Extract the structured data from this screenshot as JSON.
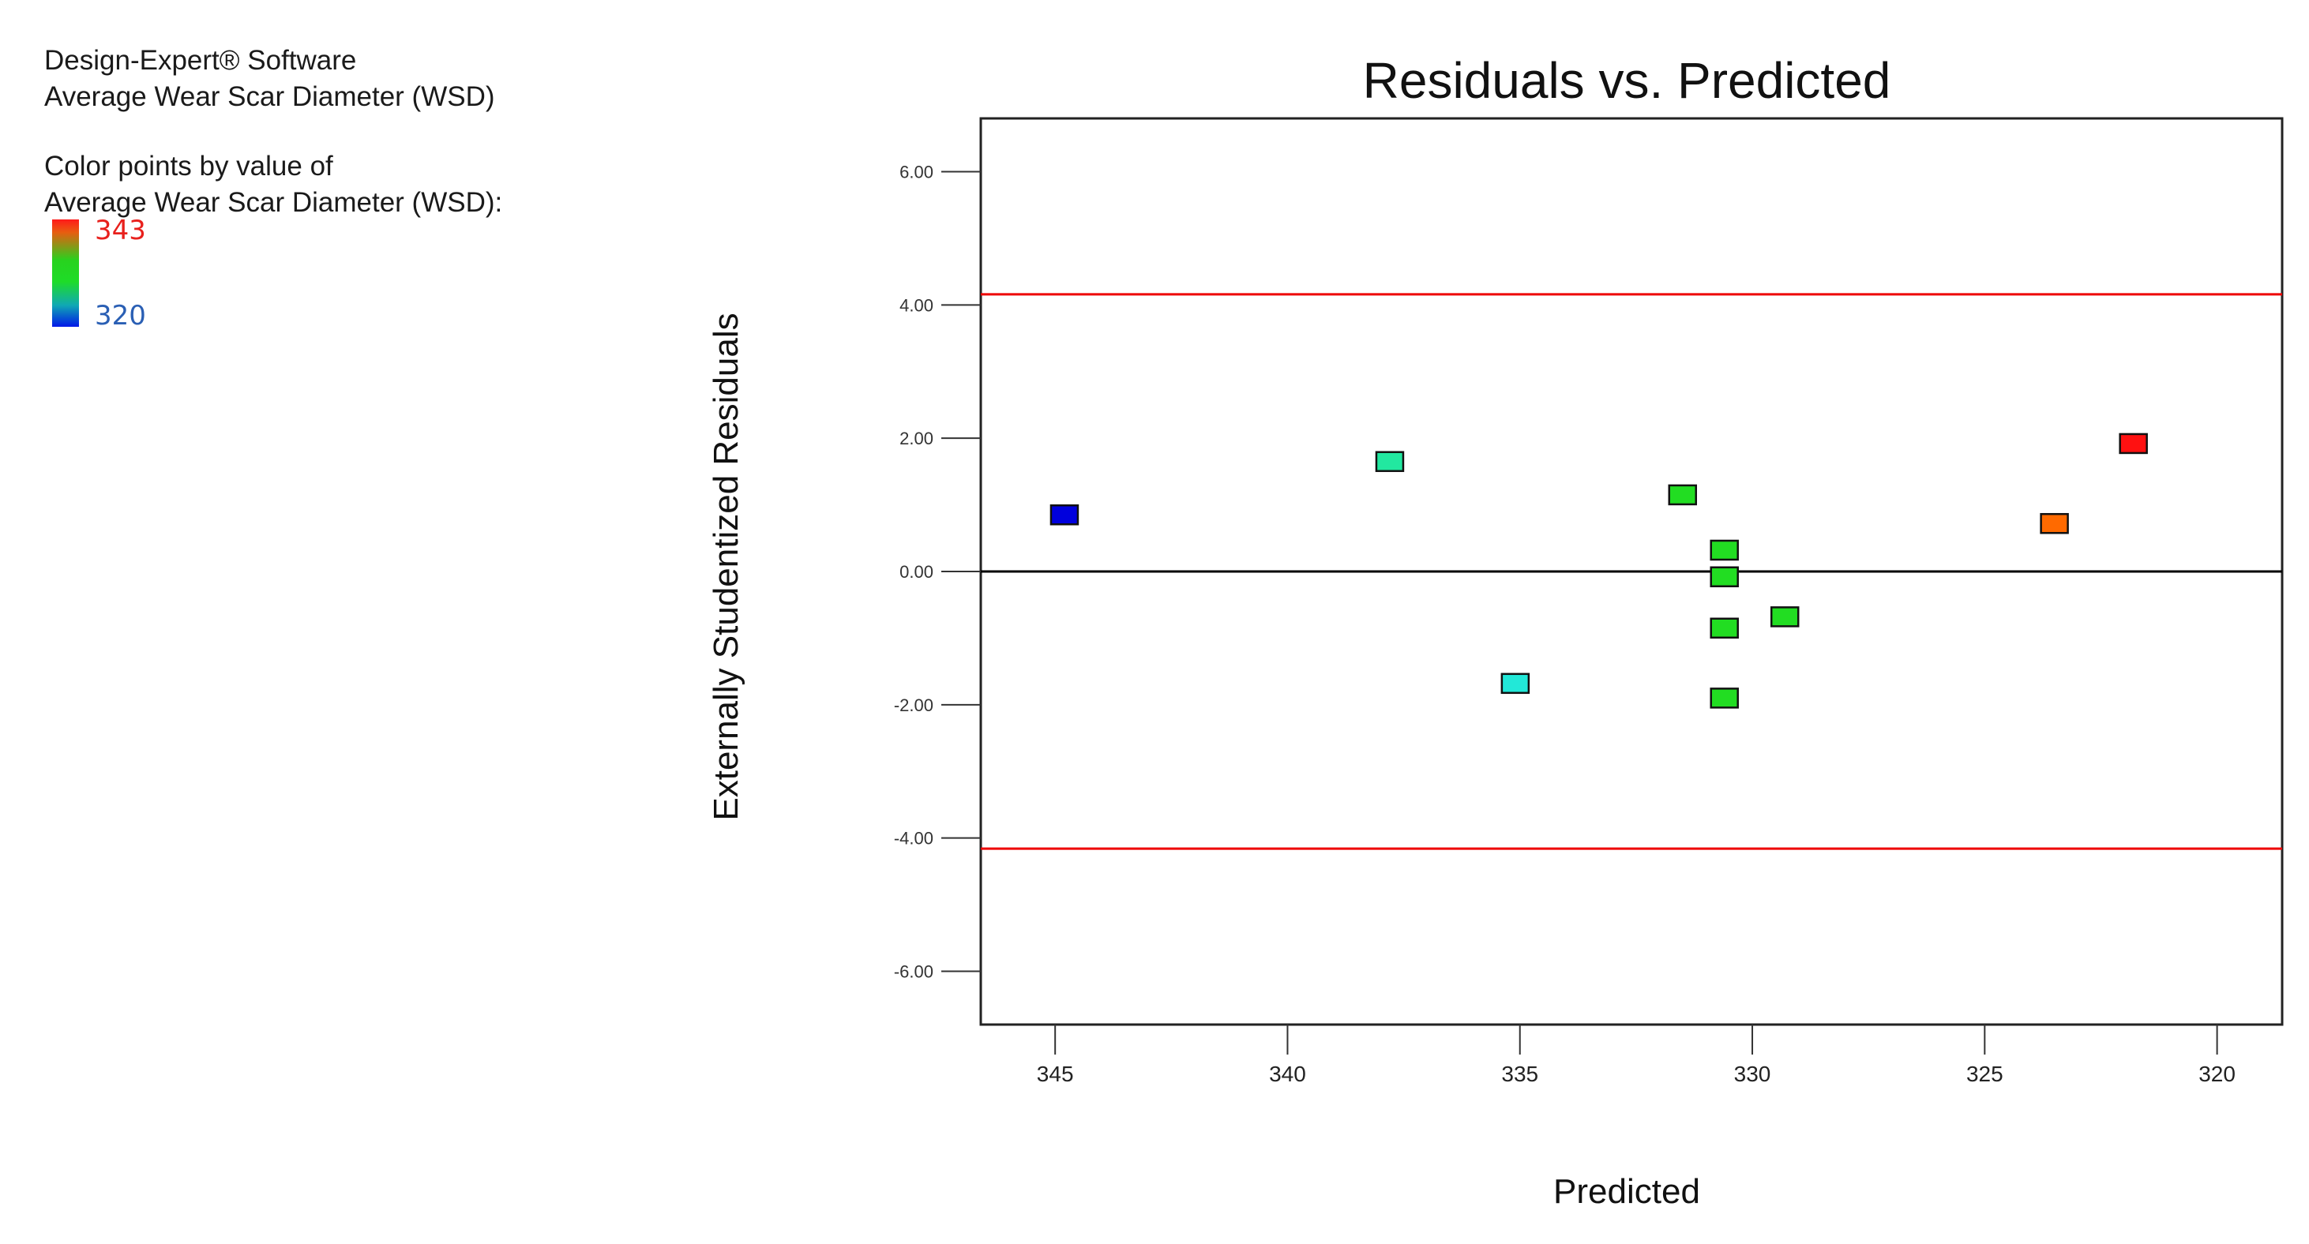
{
  "info": {
    "software": "Design-Expert® Software",
    "response": "Average Wear Scar Diameter (WSD)",
    "color_by_line1": "Color points by value of",
    "color_by_line2": "Average Wear Scar Diameter (WSD):",
    "scale_max": "343",
    "scale_min": "320"
  },
  "chart_data": {
    "type": "scatter",
    "title": "Residuals vs. Predicted",
    "xlabel": "Predicted",
    "ylabel": "Externally Studentized Residuals",
    "xlim": [
      346.6,
      318.6
    ],
    "x_reversed": true,
    "ylim": [
      -6.8,
      6.8
    ],
    "xticks": [
      345,
      340,
      335,
      330,
      325,
      320
    ],
    "xtick_labels": [
      "345",
      "340",
      "335",
      "330",
      "325",
      "320"
    ],
    "yticks": [
      6,
      4,
      2,
      0,
      -2,
      -4,
      -6
    ],
    "ytick_labels": [
      "6.00",
      "4.00",
      "2.00",
      "0.00",
      "-2.00",
      "-4.00",
      "-6.00"
    ],
    "reference_lines": [
      {
        "name": "upper-limit",
        "y": 4.16,
        "color": "#ee0000"
      },
      {
        "name": "zero-line",
        "y": 0,
        "color": "#000000"
      },
      {
        "name": "lower-limit",
        "y": -4.16,
        "color": "#ee0000"
      }
    ],
    "points": [
      {
        "x": 344.8,
        "y": 0.85,
        "color": "#0000dd"
      },
      {
        "x": 337.8,
        "y": 1.65,
        "color": "#22e8a0"
      },
      {
        "x": 335.1,
        "y": -1.68,
        "color": "#22e8d8"
      },
      {
        "x": 331.5,
        "y": 1.15,
        "color": "#22dd22"
      },
      {
        "x": 330.6,
        "y": 0.32,
        "color": "#22dd22"
      },
      {
        "x": 330.6,
        "y": -0.08,
        "color": "#22dd22"
      },
      {
        "x": 330.6,
        "y": -0.85,
        "color": "#22dd22"
      },
      {
        "x": 330.6,
        "y": -1.9,
        "color": "#22dd22"
      },
      {
        "x": 329.3,
        "y": -0.68,
        "color": "#22dd22"
      },
      {
        "x": 323.5,
        "y": 0.72,
        "color": "#ff6a00"
      },
      {
        "x": 321.8,
        "y": 1.92,
        "color": "#ff1111"
      }
    ]
  }
}
